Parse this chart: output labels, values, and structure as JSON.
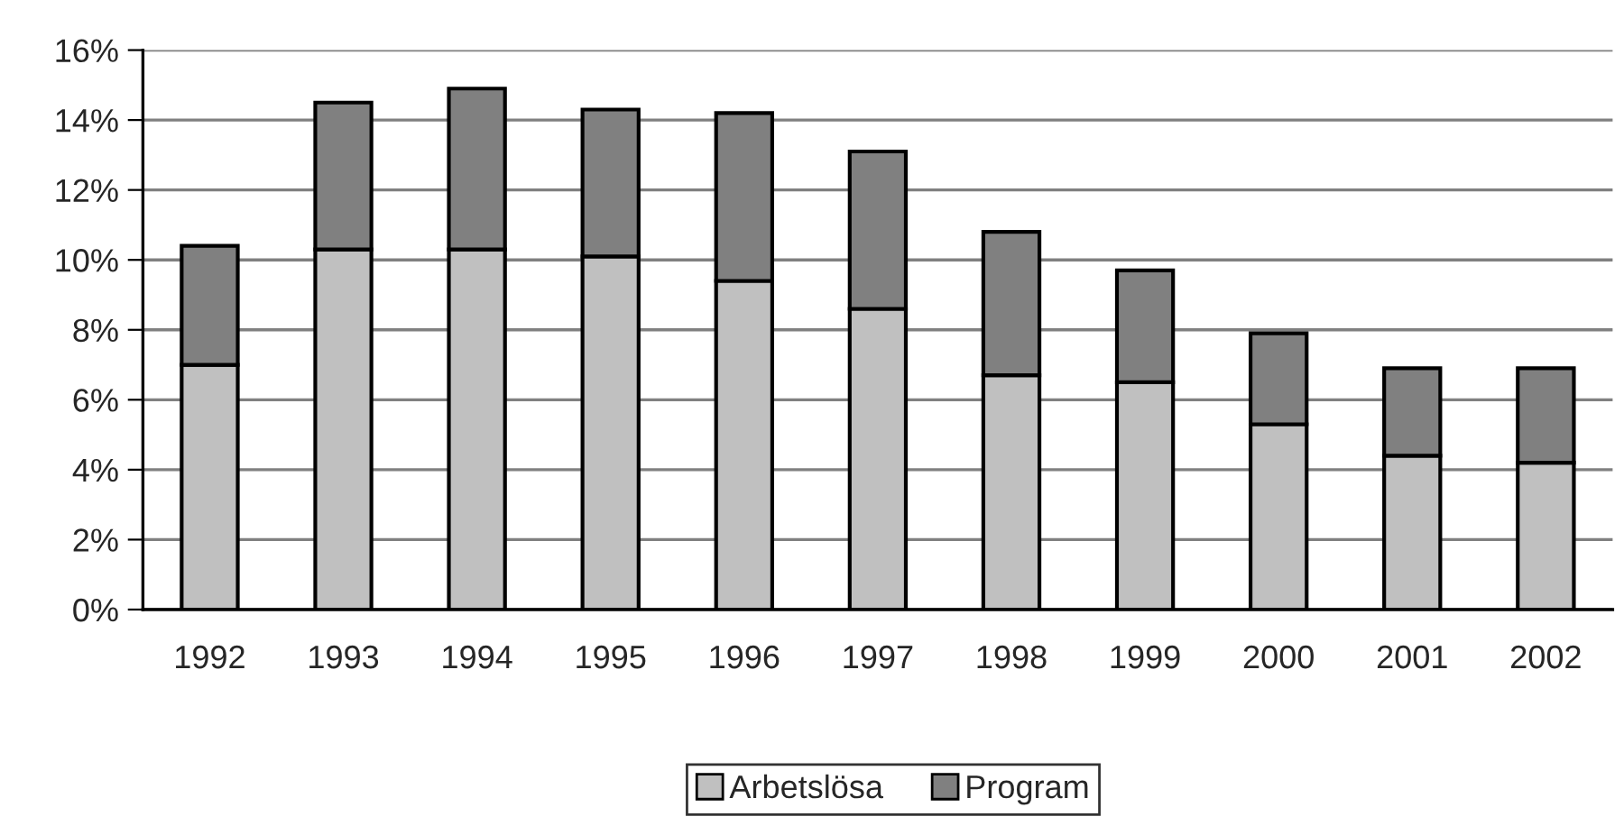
{
  "chart_data": {
    "type": "bar",
    "stacked": true,
    "categories": [
      "1992",
      "1993",
      "1994",
      "1995",
      "1996",
      "1997",
      "1998",
      "1999",
      "2000",
      "2001",
      "2002"
    ],
    "series": [
      {
        "name": "Arbetslösa",
        "color": "#c0c0c0",
        "values": [
          7.0,
          10.3,
          10.3,
          10.1,
          9.4,
          8.6,
          6.7,
          6.5,
          5.3,
          4.4,
          4.2
        ]
      },
      {
        "name": "Program",
        "color": "#808080",
        "values": [
          3.4,
          4.2,
          4.6,
          4.2,
          4.8,
          4.5,
          4.1,
          3.2,
          2.6,
          2.5,
          2.7
        ]
      }
    ],
    "ylim": [
      0,
      16
    ],
    "yticks": [
      {
        "value": 0,
        "label": "0%"
      },
      {
        "value": 2,
        "label": "2%"
      },
      {
        "value": 4,
        "label": "4%"
      },
      {
        "value": 6,
        "label": "6%"
      },
      {
        "value": 8,
        "label": "8%"
      },
      {
        "value": 10,
        "label": "10%"
      },
      {
        "value": 12,
        "label": "12%"
      },
      {
        "value": 14,
        "label": "14%"
      },
      {
        "value": 16,
        "label": "16%"
      }
    ],
    "grid": "y",
    "legend": "bottom"
  }
}
